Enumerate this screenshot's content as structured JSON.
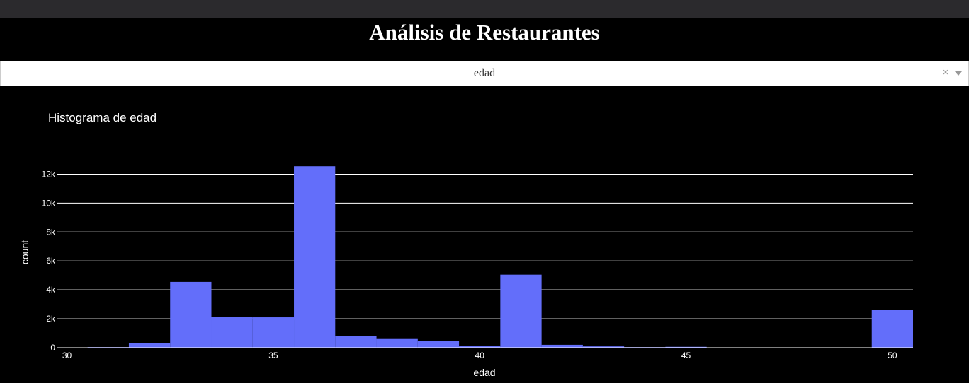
{
  "page": {
    "title": "Análisis de Restaurantes"
  },
  "dropdown": {
    "selected": "edad",
    "clear_glyph": "×"
  },
  "chart_data": {
    "type": "bar",
    "title": "Histograma de edad",
    "xlabel": "edad",
    "ylabel": "count",
    "xlim": [
      29.75,
      50.5
    ],
    "ylim": [
      0,
      13000
    ],
    "x_ticks": [
      30,
      35,
      40,
      45,
      50
    ],
    "x_tick_labels": [
      "30",
      "35",
      "40",
      "45",
      "50"
    ],
    "y_ticks": [
      0,
      2000,
      4000,
      6000,
      8000,
      10000,
      12000
    ],
    "y_tick_labels": [
      "0",
      "2k",
      "4k",
      "6k",
      "8k",
      "10k",
      "12k"
    ],
    "grid": true,
    "bar_color": "#636efa",
    "bin_width": 1,
    "bins": [
      {
        "x0": 29.5,
        "x1": 30.5,
        "count": 10
      },
      {
        "x0": 30.5,
        "x1": 31.5,
        "count": 40
      },
      {
        "x0": 31.5,
        "x1": 32.5,
        "count": 300
      },
      {
        "x0": 32.5,
        "x1": 33.5,
        "count": 4550
      },
      {
        "x0": 33.5,
        "x1": 34.5,
        "count": 2150
      },
      {
        "x0": 34.5,
        "x1": 35.5,
        "count": 2100
      },
      {
        "x0": 35.5,
        "x1": 36.5,
        "count": 12550
      },
      {
        "x0": 36.5,
        "x1": 37.5,
        "count": 800
      },
      {
        "x0": 37.5,
        "x1": 38.5,
        "count": 600
      },
      {
        "x0": 38.5,
        "x1": 39.5,
        "count": 450
      },
      {
        "x0": 39.5,
        "x1": 40.5,
        "count": 120
      },
      {
        "x0": 40.5,
        "x1": 41.5,
        "count": 5050
      },
      {
        "x0": 41.5,
        "x1": 42.5,
        "count": 200
      },
      {
        "x0": 42.5,
        "x1": 43.5,
        "count": 90
      },
      {
        "x0": 43.5,
        "x1": 44.5,
        "count": 40
      },
      {
        "x0": 44.5,
        "x1": 45.5,
        "count": 60
      },
      {
        "x0": 45.5,
        "x1": 46.5,
        "count": 20
      },
      {
        "x0": 46.5,
        "x1": 47.5,
        "count": 10
      },
      {
        "x0": 47.5,
        "x1": 48.5,
        "count": 10
      },
      {
        "x0": 48.5,
        "x1": 49.5,
        "count": 10
      },
      {
        "x0": 49.5,
        "x1": 50.5,
        "count": 2600
      }
    ]
  }
}
